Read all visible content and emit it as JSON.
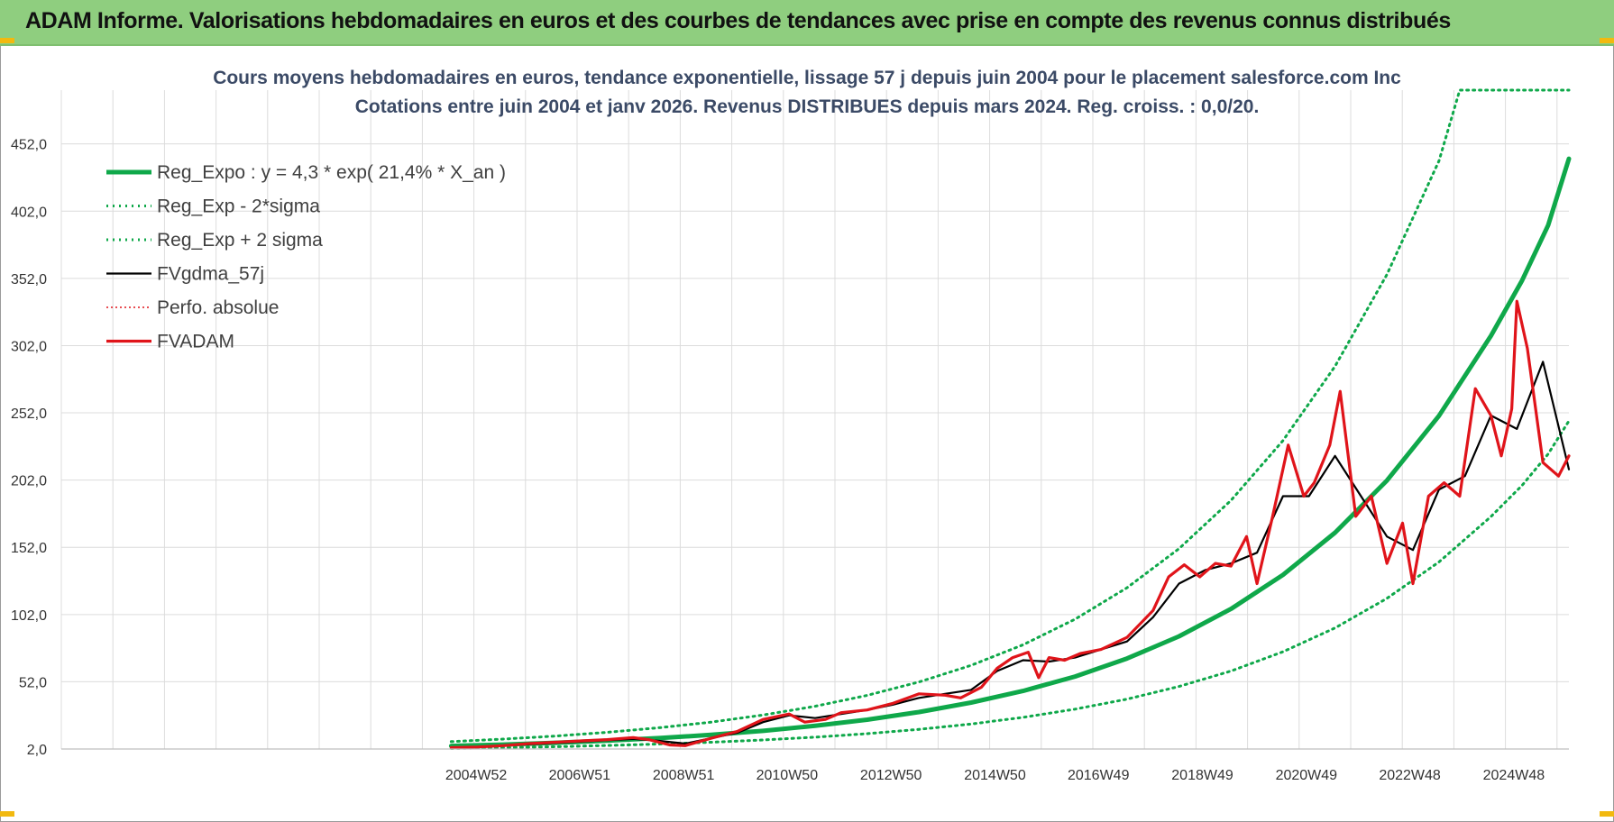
{
  "header": {
    "title": "ADAM Informe. Valorisations hebdomadaires en euros et des courbes de tendances avec prise en compte des revenus connus distribués"
  },
  "colors": {
    "banner": "#8fce7f",
    "reg": "#0fa84a",
    "black": "#000000",
    "red": "#e0141a",
    "grid": "#dcdcdc",
    "title": "#3b4a66"
  },
  "chart_data": {
    "type": "line",
    "title": "Cours moyens hebdomadaires en euros, tendance exponentielle, lissage 57 j depuis juin 2004 pour le placement salesforce.com Inc",
    "subtitle": "Cotations entre juin 2004 et janv 2026.  Revenus DISTRIBUES depuis mars 2024. Reg. croiss. : 0,0/20.",
    "xlabel": "",
    "ylabel": "",
    "ylim": [
      2,
      492
    ],
    "yticks": [
      "2,0",
      "52,0",
      "102,0",
      "152,0",
      "202,0",
      "252,0",
      "302,0",
      "352,0",
      "402,0",
      "452,0"
    ],
    "xlim": [
      1997.0,
      2026.0
    ],
    "xticks": [
      {
        "label": "2004W52",
        "x": 2004.98
      },
      {
        "label": "2006W51",
        "x": 2006.97
      },
      {
        "label": "2008W51",
        "x": 2008.97
      },
      {
        "label": "2010W50",
        "x": 2010.96
      },
      {
        "label": "2012W50",
        "x": 2012.96
      },
      {
        "label": "2014W50",
        "x": 2014.96
      },
      {
        "label": "2016W49",
        "x": 2016.95
      },
      {
        "label": "2018W49",
        "x": 2018.95
      },
      {
        "label": "2020W49",
        "x": 2020.95
      },
      {
        "label": "2022W48",
        "x": 2022.94
      },
      {
        "label": "2024W48",
        "x": 2024.94
      }
    ],
    "grid": true,
    "legend": "top-left",
    "series": [
      {
        "name": "Reg_Expo : y = 4,3 * exp( 21,4% *  X_an )",
        "style": "solid-thick",
        "color": "#0fa84a",
        "x": [
          2004.5,
          2005.5,
          2006.5,
          2007.5,
          2008.5,
          2009.5,
          2010.5,
          2011.5,
          2012.5,
          2013.5,
          2014.5,
          2015.5,
          2016.5,
          2017.5,
          2018.5,
          2019.5,
          2020.5,
          2021.5,
          2022.5,
          2023.5,
          2024.5,
          2025.1,
          2025.6,
          2026.0
        ],
        "values": [
          4.3,
          5.3,
          6.6,
          8.2,
          10.1,
          12.5,
          15.5,
          19.2,
          23.8,
          29.5,
          36.5,
          45.2,
          55.9,
          69.3,
          85.8,
          106.2,
          131.5,
          162.9,
          201.7,
          249.8,
          309.3,
          350.5,
          391.4,
          441.0
        ]
      },
      {
        "name": "Reg_Exp - 2*sigma",
        "style": "dotted",
        "color": "#0fa84a",
        "x": [
          2004.5,
          2005.5,
          2006.5,
          2007.5,
          2008.5,
          2009.5,
          2010.5,
          2011.5,
          2012.5,
          2013.5,
          2014.5,
          2015.5,
          2016.5,
          2017.5,
          2018.5,
          2019.5,
          2020.5,
          2021.5,
          2022.5,
          2023.5,
          2024.5,
          2025.1,
          2025.6,
          2026.0
        ],
        "values": [
          2.4,
          3.0,
          3.7,
          4.6,
          5.7,
          7.0,
          8.7,
          10.8,
          13.4,
          16.6,
          20.6,
          25.5,
          31.6,
          39.1,
          48.5,
          60.0,
          74.3,
          92.0,
          114.0,
          141.1,
          174.8,
          198.1,
          221.3,
          246.0
        ]
      },
      {
        "name": "Reg_Exp + 2 sigma",
        "style": "dotted",
        "color": "#0fa84a",
        "x": [
          2004.5,
          2005.5,
          2006.5,
          2007.5,
          2008.5,
          2009.5,
          2010.5,
          2011.5,
          2012.5,
          2013.5,
          2014.5,
          2015.5,
          2016.5,
          2017.5,
          2018.5,
          2019.5,
          2020.5,
          2021.5,
          2022.5,
          2023.5,
          2023.9,
          2026.0
        ],
        "values": [
          7.5,
          9.4,
          11.6,
          14.4,
          17.8,
          22.0,
          27.3,
          33.8,
          41.9,
          51.9,
          64.2,
          79.5,
          98.5,
          121.9,
          151.0,
          186.9,
          231.4,
          286.6,
          354.9,
          439.4,
          492.0,
          492.0
        ]
      },
      {
        "name": "FVgdma_57j",
        "style": "solid",
        "color": "#000000",
        "x": [
          2004.5,
          2005.0,
          2005.5,
          2006.0,
          2006.5,
          2007.0,
          2007.5,
          2008.0,
          2008.5,
          2009.0,
          2009.5,
          2010.0,
          2010.5,
          2011.0,
          2011.5,
          2012.0,
          2012.5,
          2013.0,
          2013.5,
          2014.0,
          2014.5,
          2015.0,
          2015.5,
          2016.0,
          2016.5,
          2017.0,
          2017.5,
          2018.0,
          2018.5,
          2019.0,
          2019.5,
          2020.0,
          2020.5,
          2021.0,
          2021.5,
          2022.0,
          2022.5,
          2023.0,
          2023.5,
          2024.0,
          2024.5,
          2025.0,
          2025.5,
          2026.0
        ],
        "values": [
          3.0,
          3.5,
          4.5,
          5.5,
          6.5,
          7.5,
          8.5,
          9.5,
          8.0,
          6.0,
          10.0,
          14.0,
          22.0,
          27.0,
          25.0,
          28.0,
          31.0,
          35.0,
          40.0,
          43.0,
          46.0,
          60.0,
          68.0,
          67.0,
          70.0,
          76.0,
          82.0,
          100.0,
          125.0,
          135.0,
          140.0,
          148.0,
          190.0,
          190.0,
          220.0,
          190.0,
          160.0,
          150.0,
          195.0,
          205.0,
          250.0,
          240.0,
          290.0,
          210.0
        ]
      },
      {
        "name": "Perfo. absolue",
        "style": "dotted-thin",
        "color": "#e0141a",
        "x": [
          2004.5,
          2005.0,
          2005.5,
          2006.0,
          2006.5,
          2007.0,
          2007.5,
          2008.0,
          2008.5,
          2009.0,
          2009.5,
          2010.0,
          2010.5,
          2011.0,
          2011.5,
          2012.0,
          2012.5,
          2013.0,
          2013.5,
          2014.0,
          2014.5,
          2015.0,
          2015.5,
          2016.0,
          2016.5,
          2017.0,
          2017.5,
          2018.0,
          2018.5,
          2019.0,
          2019.5,
          2020.0,
          2020.5,
          2021.0,
          2021.5,
          2022.0,
          2022.5,
          2023.0,
          2023.5,
          2024.0,
          2024.5,
          2025.0,
          2025.5,
          2026.0
        ],
        "values": [
          3.0,
          3.6,
          4.6,
          5.6,
          6.6,
          7.6,
          8.6,
          9.6,
          8.1,
          6.1,
          10.1,
          14.1,
          22.1,
          27.1,
          25.1,
          28.1,
          31.1,
          35.1,
          40.1,
          43.1,
          46.1,
          60.1,
          68.1,
          67.1,
          70.1,
          76.1,
          82.1,
          100.1,
          125.1,
          135.1,
          140.1,
          148.1,
          190.1,
          190.1,
          220.1,
          190.1,
          160.1,
          150.1,
          195.1,
          205.1,
          250.1,
          240.1,
          290.1,
          210.1
        ]
      },
      {
        "name": "FVADAM",
        "style": "solid-thick",
        "color": "#e0141a",
        "x": [
          2004.5,
          2005.0,
          2005.5,
          2006.0,
          2006.5,
          2007.0,
          2007.5,
          2008.0,
          2008.3,
          2008.7,
          2009.0,
          2009.5,
          2010.0,
          2010.5,
          2011.0,
          2011.3,
          2011.7,
          2012.0,
          2012.5,
          2013.0,
          2013.5,
          2014.0,
          2014.3,
          2014.7,
          2015.0,
          2015.3,
          2015.6,
          2015.8,
          2016.0,
          2016.3,
          2016.6,
          2017.0,
          2017.5,
          2018.0,
          2018.3,
          2018.6,
          2018.9,
          2019.2,
          2019.5,
          2019.8,
          2020.0,
          2020.3,
          2020.6,
          2020.9,
          2021.1,
          2021.4,
          2021.6,
          2021.9,
          2022.2,
          2022.5,
          2022.8,
          2023.0,
          2023.3,
          2023.6,
          2023.9,
          2024.2,
          2024.5,
          2024.7,
          2024.9,
          2025.0,
          2025.2,
          2025.5,
          2025.8,
          2026.0
        ],
        "values": [
          3.0,
          3.5,
          4.5,
          6.0,
          7.0,
          8.0,
          9.0,
          10.5,
          9.0,
          5.0,
          4.5,
          10.0,
          15.0,
          24.0,
          28.0,
          22.0,
          24.0,
          29.0,
          31.0,
          36.0,
          43.0,
          42.0,
          40.0,
          48.0,
          62.0,
          70.0,
          74.0,
          55.0,
          70.0,
          68.0,
          73.0,
          76.0,
          85.0,
          105.0,
          130.0,
          139.0,
          130.0,
          140.0,
          138.0,
          160.0,
          125.0,
          175.0,
          228.0,
          190.0,
          200.0,
          228.0,
          268.0,
          175.0,
          190.0,
          140.0,
          170.0,
          125.0,
          190.0,
          200.0,
          190.0,
          270.0,
          250.0,
          220.0,
          255.0,
          335.0,
          300.0,
          215.0,
          205.0,
          220.0
        ]
      }
    ]
  }
}
